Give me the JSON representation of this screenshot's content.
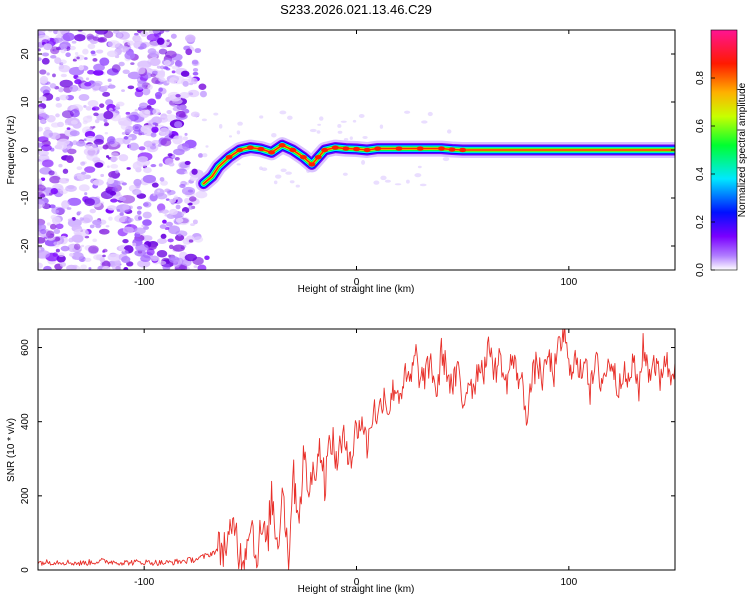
{
  "title": "S233.2026.021.13.46.C29",
  "chart_data": [
    {
      "type": "heatmap",
      "name": "spectrogram",
      "xlabel": "Height of straight line (km)",
      "ylabel": "Frequency (Hz)",
      "xlim": [
        -150,
        150
      ],
      "ylim": [
        -25,
        25
      ],
      "xticks": [
        -100,
        0,
        100
      ],
      "xtick_labels": [
        "-100",
        "0",
        "100"
      ],
      "yticks": [
        -20,
        -10,
        0,
        10,
        20
      ],
      "ytick_labels": [
        "-20",
        "-10",
        "0",
        "10",
        "20"
      ],
      "noise_region_x": [
        -150,
        -70
      ],
      "ridge": {
        "x": [
          -72,
          -68,
          -65,
          -60,
          -55,
          -50,
          -45,
          -40,
          -35,
          -30,
          -25,
          -21,
          -18,
          -15,
          -10,
          -5,
          0,
          5,
          10,
          20,
          30,
          40,
          45,
          50,
          60,
          80,
          100,
          120,
          150
        ],
        "y": [
          -7,
          -5.5,
          -3.5,
          -1.5,
          0,
          0.5,
          0.2,
          -0.5,
          1,
          0,
          -1.5,
          -3,
          -1.5,
          0,
          0.5,
          0.3,
          0.2,
          0,
          0.3,
          0.3,
          0.3,
          0.3,
          0.1,
          0,
          0,
          0,
          0,
          0,
          0
        ]
      },
      "colorbar": {
        "label": "Normalized spectral amplitude",
        "range": [
          0,
          1
        ],
        "ticks": [
          0.0,
          0.2,
          0.4,
          0.6,
          0.8
        ],
        "tick_labels": [
          "0.0",
          "0.2",
          "0.4",
          "0.6",
          "0.8"
        ],
        "colors": [
          "#ffffff",
          "#9b30ff",
          "#0000ff",
          "#00ffff",
          "#00ff00",
          "#ffff00",
          "#ff8000",
          "#ff0000",
          "#ff1493"
        ]
      }
    },
    {
      "type": "line",
      "name": "snr",
      "xlabel": "Height of straight line (km)",
      "ylabel": "SNR (10 * v/v)",
      "xlim": [
        -150,
        150
      ],
      "ylim": [
        0,
        650
      ],
      "xticks": [
        -100,
        0,
        100
      ],
      "xtick_labels": [
        "-100",
        "0",
        "100"
      ],
      "yticks": [
        0,
        200,
        400,
        600
      ],
      "ytick_labels": [
        "0",
        "200",
        "400",
        "600"
      ],
      "line_color": "#e8302a",
      "series": [
        {
          "name": "SNR",
          "x": [
            -150,
            -140,
            -130,
            -120,
            -110,
            -100,
            -90,
            -80,
            -75,
            -70,
            -65,
            -60,
            -57,
            -55,
            -52,
            -50,
            -47,
            -45,
            -42,
            -40,
            -37,
            -35,
            -32,
            -30,
            -27,
            -25,
            -22,
            -20,
            -17,
            -15,
            -12,
            -10,
            -7,
            -5,
            -2,
            0,
            3,
            5,
            8,
            10,
            13,
            15,
            18,
            20,
            23,
            25,
            28,
            30,
            33,
            35,
            38,
            40,
            43,
            45,
            48,
            50,
            53,
            55,
            58,
            60,
            63,
            65,
            68,
            70,
            73,
            75,
            78,
            80,
            83,
            85,
            88,
            90,
            93,
            95,
            98,
            100,
            103,
            105,
            108,
            110,
            113,
            115,
            118,
            120,
            123,
            125,
            128,
            130,
            133,
            135,
            138,
            140,
            143,
            145,
            148,
            150
          ],
          "y": [
            20,
            22,
            18,
            24,
            20,
            21,
            19,
            25,
            30,
            40,
            55,
            75,
            130,
            30,
            60,
            150,
            20,
            110,
            70,
            200,
            60,
            240,
            30,
            260,
            150,
            300,
            210,
            280,
            330,
            240,
            360,
            300,
            330,
            350,
            310,
            380,
            400,
            330,
            440,
            410,
            480,
            430,
            500,
            470,
            520,
            500,
            580,
            510,
            530,
            560,
            470,
            590,
            530,
            490,
            540,
            440,
            520,
            490,
            560,
            540,
            610,
            530,
            580,
            490,
            570,
            540,
            500,
            420,
            520,
            560,
            510,
            580,
            530,
            590,
            640,
            540,
            570,
            520,
            590,
            480,
            560,
            510,
            540,
            570,
            490,
            540,
            500,
            560,
            490,
            600,
            530,
            570,
            510,
            580,
            520,
            560
          ]
        }
      ]
    }
  ]
}
